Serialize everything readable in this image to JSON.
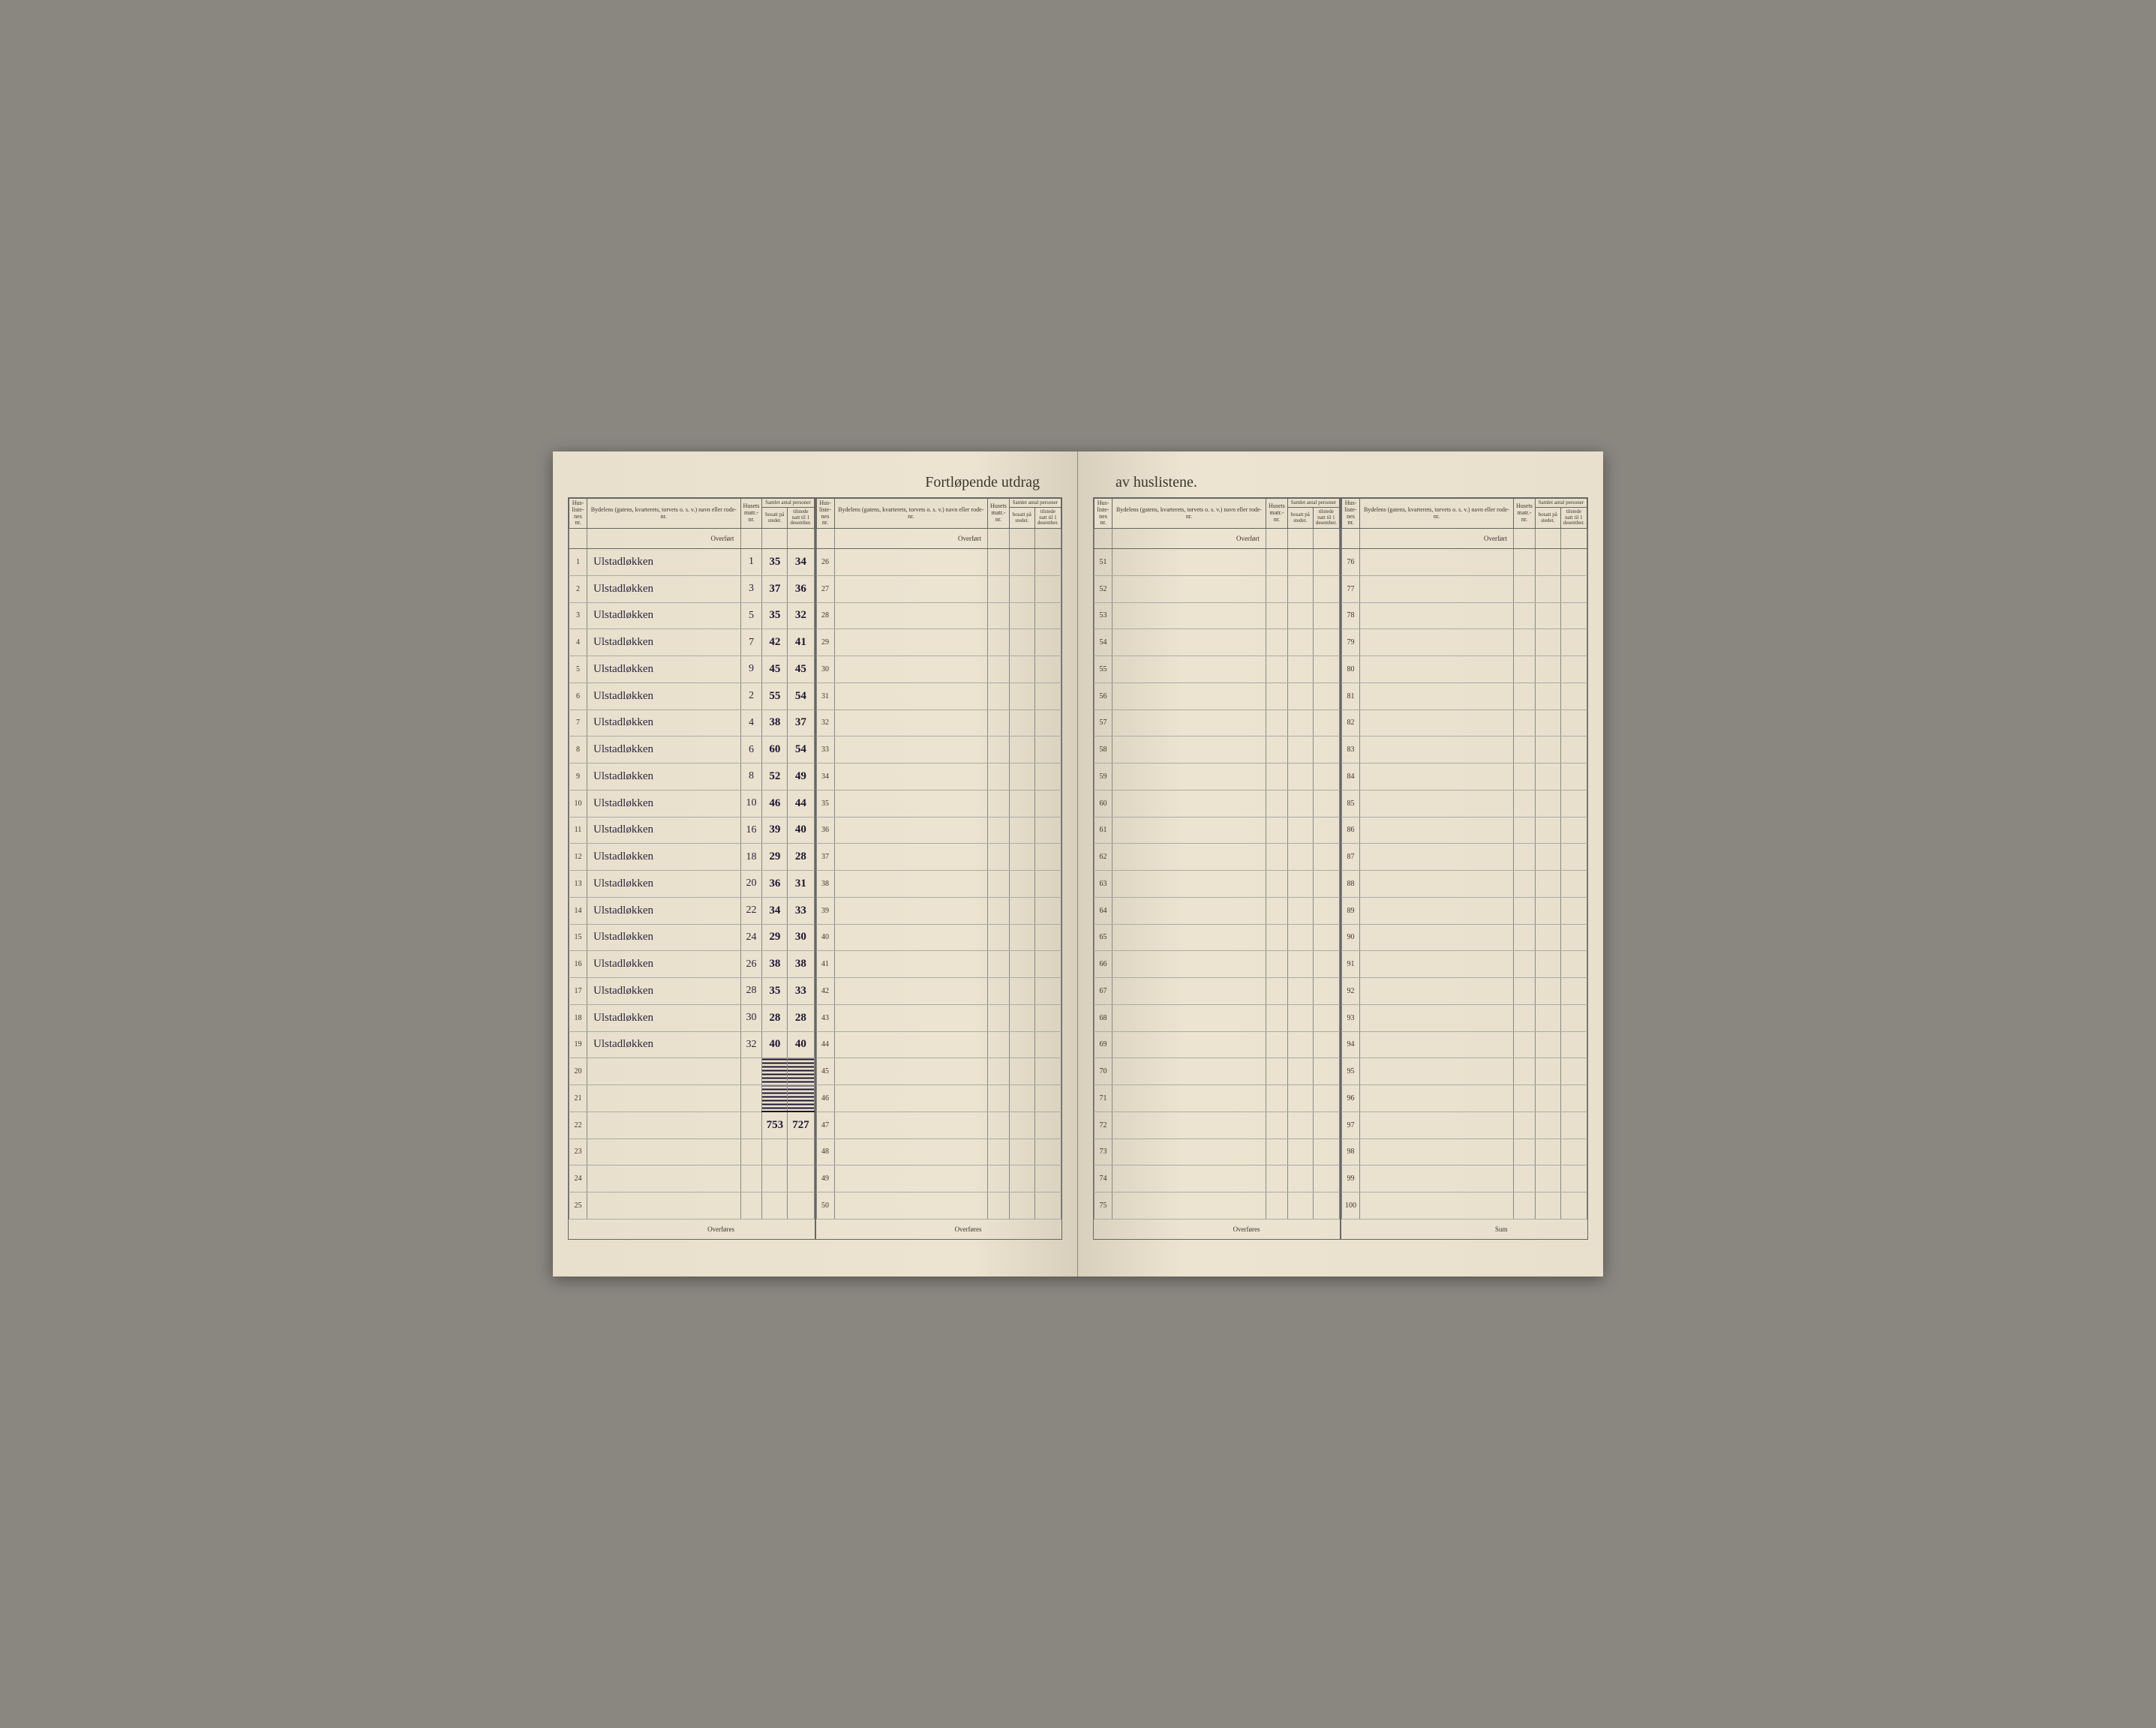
{
  "title_left": "Fortløpende utdrag",
  "title_right": "av huslistene.",
  "headers": {
    "husliste_nr": "Hus-liste-nes nr.",
    "bydelen": "Bydelens (gatens, kvarterets, torvets o. s. v.) navn eller rode-nr.",
    "husets_matnr": "Husets matr.-nr.",
    "samlet": "Samlet antal personer",
    "bosatt": "bosatt på stedet.",
    "tilstede": "tilstede natt til 1 desember."
  },
  "overfort": "Overført",
  "overfores": "Overføres",
  "sum_label": "Sum",
  "entries": [
    {
      "nr": 1,
      "street": "Ulstadløkken",
      "mat": "1",
      "bosatt": "35",
      "tilstede": "34"
    },
    {
      "nr": 2,
      "street": "Ulstadløkken",
      "mat": "3",
      "bosatt": "37",
      "tilstede": "36"
    },
    {
      "nr": 3,
      "street": "Ulstadløkken",
      "mat": "5",
      "bosatt": "35",
      "tilstede": "32"
    },
    {
      "nr": 4,
      "street": "Ulstadløkken",
      "mat": "7",
      "bosatt": "42",
      "tilstede": "41"
    },
    {
      "nr": 5,
      "street": "Ulstadløkken",
      "mat": "9",
      "bosatt": "45",
      "tilstede": "45"
    },
    {
      "nr": 6,
      "street": "Ulstadløkken",
      "mat": "2",
      "bosatt": "55",
      "tilstede": "54"
    },
    {
      "nr": 7,
      "street": "Ulstadløkken",
      "mat": "4",
      "bosatt": "38",
      "tilstede": "37"
    },
    {
      "nr": 8,
      "street": "Ulstadløkken",
      "mat": "6",
      "bosatt": "60",
      "tilstede": "54"
    },
    {
      "nr": 9,
      "street": "Ulstadløkken",
      "mat": "8",
      "bosatt": "52",
      "tilstede": "49"
    },
    {
      "nr": 10,
      "street": "Ulstadløkken",
      "mat": "10",
      "bosatt": "46",
      "tilstede": "44"
    },
    {
      "nr": 11,
      "street": "Ulstadløkken",
      "mat": "16",
      "bosatt": "39",
      "tilstede": "40"
    },
    {
      "nr": 12,
      "street": "Ulstadløkken",
      "mat": "18",
      "bosatt": "29",
      "tilstede": "28"
    },
    {
      "nr": 13,
      "street": "Ulstadløkken",
      "mat": "20",
      "bosatt": "36",
      "tilstede": "31"
    },
    {
      "nr": 14,
      "street": "Ulstadløkken",
      "mat": "22",
      "bosatt": "34",
      "tilstede": "33"
    },
    {
      "nr": 15,
      "street": "Ulstadløkken",
      "mat": "24",
      "bosatt": "29",
      "tilstede": "30"
    },
    {
      "nr": 16,
      "street": "Ulstadløkken",
      "mat": "26",
      "bosatt": "38",
      "tilstede": "38"
    },
    {
      "nr": 17,
      "street": "Ulstadløkken",
      "mat": "28",
      "bosatt": "35",
      "tilstede": "33"
    },
    {
      "nr": 18,
      "street": "Ulstadløkken",
      "mat": "30",
      "bosatt": "28",
      "tilstede": "28"
    },
    {
      "nr": 19,
      "street": "Ulstadløkken",
      "mat": "32",
      "bosatt": "40",
      "tilstede": "40"
    }
  ],
  "crossed_rows": [
    20,
    21
  ],
  "sum": {
    "bosatt": "753",
    "tilstede": "727"
  },
  "left_col2_start": 26,
  "right_col1_start": 51,
  "right_col2_start": 76
}
